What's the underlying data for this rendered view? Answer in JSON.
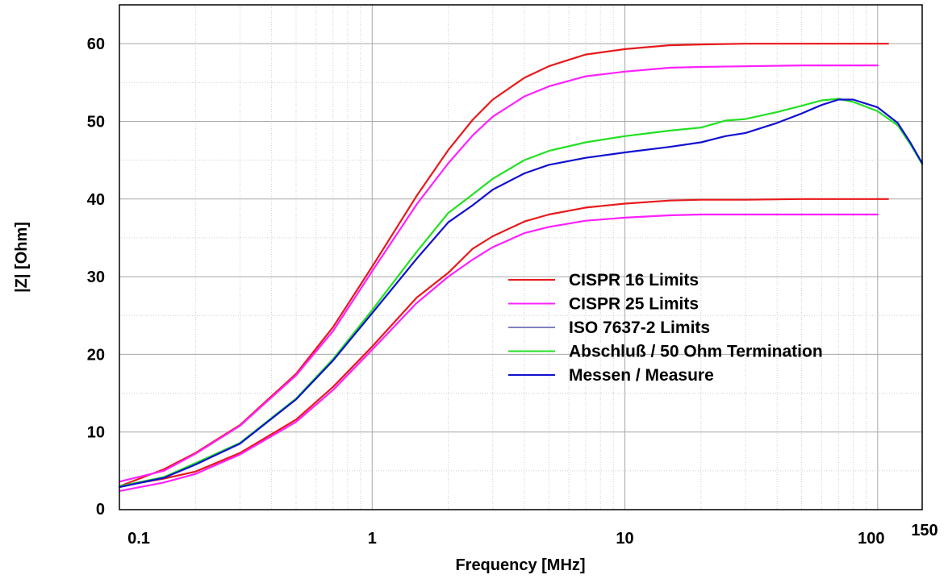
{
  "chart_data": {
    "type": "line",
    "title": "",
    "xlabel": "Frequency [MHz]",
    "ylabel": "|Z| [Ohm]",
    "x_scale": "log",
    "xlim": [
      0.1,
      150
    ],
    "ylim": [
      0,
      65
    ],
    "grid": true,
    "legend_position": "center-right",
    "x_tick_labels": [
      {
        "value": 0.1,
        "label": "0.1"
      },
      {
        "value": 1,
        "label": "1"
      },
      {
        "value": 10,
        "label": "10"
      },
      {
        "value": 100,
        "label": "100"
      },
      {
        "value": 150,
        "label": "150"
      }
    ],
    "y_tick_labels": [
      {
        "value": 0,
        "label": "0"
      },
      {
        "value": 10,
        "label": "10"
      },
      {
        "value": 20,
        "label": "20"
      },
      {
        "value": 30,
        "label": "30"
      },
      {
        "value": 40,
        "label": "40"
      },
      {
        "value": 50,
        "label": "50"
      },
      {
        "value": 60,
        "label": "60"
      }
    ],
    "series": [
      {
        "name": "CISPR 16 Limits",
        "color": "#e8191b",
        "points": [
          {
            "x": 0.1,
            "y": 3.0
          },
          {
            "x": 0.15,
            "y": 4.0
          },
          {
            "x": 0.2,
            "y": 4.9
          },
          {
            "x": 0.3,
            "y": 7.3
          },
          {
            "x": 0.5,
            "y": 11.6
          },
          {
            "x": 0.7,
            "y": 15.8
          },
          {
            "x": 1,
            "y": 21.0
          },
          {
            "x": 1.5,
            "y": 27.3
          },
          {
            "x": 2,
            "y": 30.5
          },
          {
            "x": 2.5,
            "y": 33.6
          },
          {
            "x": 3,
            "y": 35.2
          },
          {
            "x": 4,
            "y": 37.1
          },
          {
            "x": 5,
            "y": 38.0
          },
          {
            "x": 7,
            "y": 38.9
          },
          {
            "x": 10,
            "y": 39.4
          },
          {
            "x": 15,
            "y": 39.8
          },
          {
            "x": 20,
            "y": 39.9
          },
          {
            "x": 30,
            "y": 39.9
          },
          {
            "x": 50,
            "y": 40.0
          },
          {
            "x": 110,
            "y": 40.0
          }
        ]
      },
      {
        "name": "CISPR 16 Limits",
        "color": "#e8191b",
        "points": [
          {
            "x": 0.1,
            "y": 3.0
          },
          {
            "x": 0.15,
            "y": 5.2
          },
          {
            "x": 0.2,
            "y": 7.3
          },
          {
            "x": 0.3,
            "y": 10.9
          },
          {
            "x": 0.5,
            "y": 17.5
          },
          {
            "x": 0.7,
            "y": 23.5
          },
          {
            "x": 1,
            "y": 31.3
          },
          {
            "x": 1.5,
            "y": 40.4
          },
          {
            "x": 2,
            "y": 46.3
          },
          {
            "x": 2.5,
            "y": 50.2
          },
          {
            "x": 3,
            "y": 52.8
          },
          {
            "x": 4,
            "y": 55.6
          },
          {
            "x": 5,
            "y": 57.1
          },
          {
            "x": 7,
            "y": 58.6
          },
          {
            "x": 10,
            "y": 59.3
          },
          {
            "x": 15,
            "y": 59.8
          },
          {
            "x": 20,
            "y": 59.9
          },
          {
            "x": 30,
            "y": 60.0
          },
          {
            "x": 50,
            "y": 60.0
          },
          {
            "x": 110,
            "y": 60.0
          }
        ]
      },
      {
        "name": "CISPR 25 Limits",
        "color": "#ff20ff",
        "points": [
          {
            "x": 0.1,
            "y": 2.4
          },
          {
            "x": 0.15,
            "y": 3.5
          },
          {
            "x": 0.2,
            "y": 4.6
          },
          {
            "x": 0.3,
            "y": 7.1
          },
          {
            "x": 0.5,
            "y": 11.3
          },
          {
            "x": 0.7,
            "y": 15.4
          },
          {
            "x": 1,
            "y": 20.6
          },
          {
            "x": 1.5,
            "y": 26.6
          },
          {
            "x": 2,
            "y": 30.0
          },
          {
            "x": 2.5,
            "y": 32.2
          },
          {
            "x": 3,
            "y": 33.8
          },
          {
            "x": 4,
            "y": 35.6
          },
          {
            "x": 5,
            "y": 36.4
          },
          {
            "x": 7,
            "y": 37.2
          },
          {
            "x": 10,
            "y": 37.6
          },
          {
            "x": 15,
            "y": 37.9
          },
          {
            "x": 20,
            "y": 38.0
          },
          {
            "x": 50,
            "y": 38.0
          },
          {
            "x": 100,
            "y": 38.0
          }
        ]
      },
      {
        "name": "CISPR 25 Limits",
        "color": "#ff20ff",
        "points": [
          {
            "x": 0.1,
            "y": 3.6
          },
          {
            "x": 0.15,
            "y": 5.0
          },
          {
            "x": 0.2,
            "y": 7.2
          },
          {
            "x": 0.3,
            "y": 10.8
          },
          {
            "x": 0.5,
            "y": 17.3
          },
          {
            "x": 0.7,
            "y": 23.0
          },
          {
            "x": 1,
            "y": 30.7
          },
          {
            "x": 1.5,
            "y": 39.3
          },
          {
            "x": 2,
            "y": 44.6
          },
          {
            "x": 2.5,
            "y": 48.2
          },
          {
            "x": 3,
            "y": 50.6
          },
          {
            "x": 4,
            "y": 53.2
          },
          {
            "x": 5,
            "y": 54.5
          },
          {
            "x": 7,
            "y": 55.8
          },
          {
            "x": 10,
            "y": 56.4
          },
          {
            "x": 15,
            "y": 56.9
          },
          {
            "x": 20,
            "y": 57.0
          },
          {
            "x": 50,
            "y": 57.2
          },
          {
            "x": 100,
            "y": 57.2
          }
        ]
      },
      {
        "name": "ISO 7637-2 Limits",
        "color": "#8080c0",
        "points": []
      },
      {
        "name": "Abschluß / 50 Ohm Termination",
        "color": "#22e022",
        "points": [
          {
            "x": 0.1,
            "y": 3.0
          },
          {
            "x": 0.15,
            "y": 4.2
          },
          {
            "x": 0.2,
            "y": 6.0
          },
          {
            "x": 0.3,
            "y": 8.6
          },
          {
            "x": 0.5,
            "y": 14.3
          },
          {
            "x": 0.7,
            "y": 19.4
          },
          {
            "x": 1,
            "y": 25.7
          },
          {
            "x": 1.5,
            "y": 33.2
          },
          {
            "x": 2,
            "y": 38.2
          },
          {
            "x": 2.5,
            "y": 40.6
          },
          {
            "x": 3,
            "y": 42.6
          },
          {
            "x": 4,
            "y": 45.0
          },
          {
            "x": 5,
            "y": 46.2
          },
          {
            "x": 7,
            "y": 47.3
          },
          {
            "x": 10,
            "y": 48.1
          },
          {
            "x": 15,
            "y": 48.8
          },
          {
            "x": 20,
            "y": 49.2
          },
          {
            "x": 25,
            "y": 50.1
          },
          {
            "x": 30,
            "y": 50.3
          },
          {
            "x": 40,
            "y": 51.2
          },
          {
            "x": 50,
            "y": 52.0
          },
          {
            "x": 60,
            "y": 52.7
          },
          {
            "x": 70,
            "y": 52.9
          },
          {
            "x": 80,
            "y": 52.5
          },
          {
            "x": 100,
            "y": 51.3
          },
          {
            "x": 120,
            "y": 49.5
          },
          {
            "x": 135,
            "y": 47.0
          },
          {
            "x": 150,
            "y": 44.5
          }
        ]
      },
      {
        "name": "Messen / Measure",
        "color": "#1010d0",
        "points": [
          {
            "x": 0.1,
            "y": 2.9
          },
          {
            "x": 0.15,
            "y": 4.1
          },
          {
            "x": 0.2,
            "y": 5.8
          },
          {
            "x": 0.3,
            "y": 8.5
          },
          {
            "x": 0.5,
            "y": 14.2
          },
          {
            "x": 0.7,
            "y": 19.2
          },
          {
            "x": 1,
            "y": 25.3
          },
          {
            "x": 1.5,
            "y": 32.3
          },
          {
            "x": 2,
            "y": 37.0
          },
          {
            "x": 2.5,
            "y": 39.2
          },
          {
            "x": 3,
            "y": 41.2
          },
          {
            "x": 4,
            "y": 43.3
          },
          {
            "x": 5,
            "y": 44.4
          },
          {
            "x": 7,
            "y": 45.3
          },
          {
            "x": 10,
            "y": 46.0
          },
          {
            "x": 15,
            "y": 46.7
          },
          {
            "x": 20,
            "y": 47.3
          },
          {
            "x": 25,
            "y": 48.1
          },
          {
            "x": 30,
            "y": 48.5
          },
          {
            "x": 40,
            "y": 49.8
          },
          {
            "x": 50,
            "y": 51.0
          },
          {
            "x": 60,
            "y": 52.1
          },
          {
            "x": 70,
            "y": 52.8
          },
          {
            "x": 80,
            "y": 52.8
          },
          {
            "x": 100,
            "y": 51.8
          },
          {
            "x": 120,
            "y": 49.8
          },
          {
            "x": 135,
            "y": 47.2
          },
          {
            "x": 150,
            "y": 44.6
          }
        ]
      }
    ],
    "legend": [
      {
        "name": "CISPR 16 Limits",
        "color": "#e8191b"
      },
      {
        "name": "CISPR 25 Limits",
        "color": "#ff20ff"
      },
      {
        "name": "ISO 7637-2 Limits",
        "color": "#8080c0"
      },
      {
        "name": "Abschluß / 50 Ohm Termination",
        "color": "#22e022"
      },
      {
        "name": "Messen / Measure",
        "color": "#1010d0"
      }
    ]
  }
}
